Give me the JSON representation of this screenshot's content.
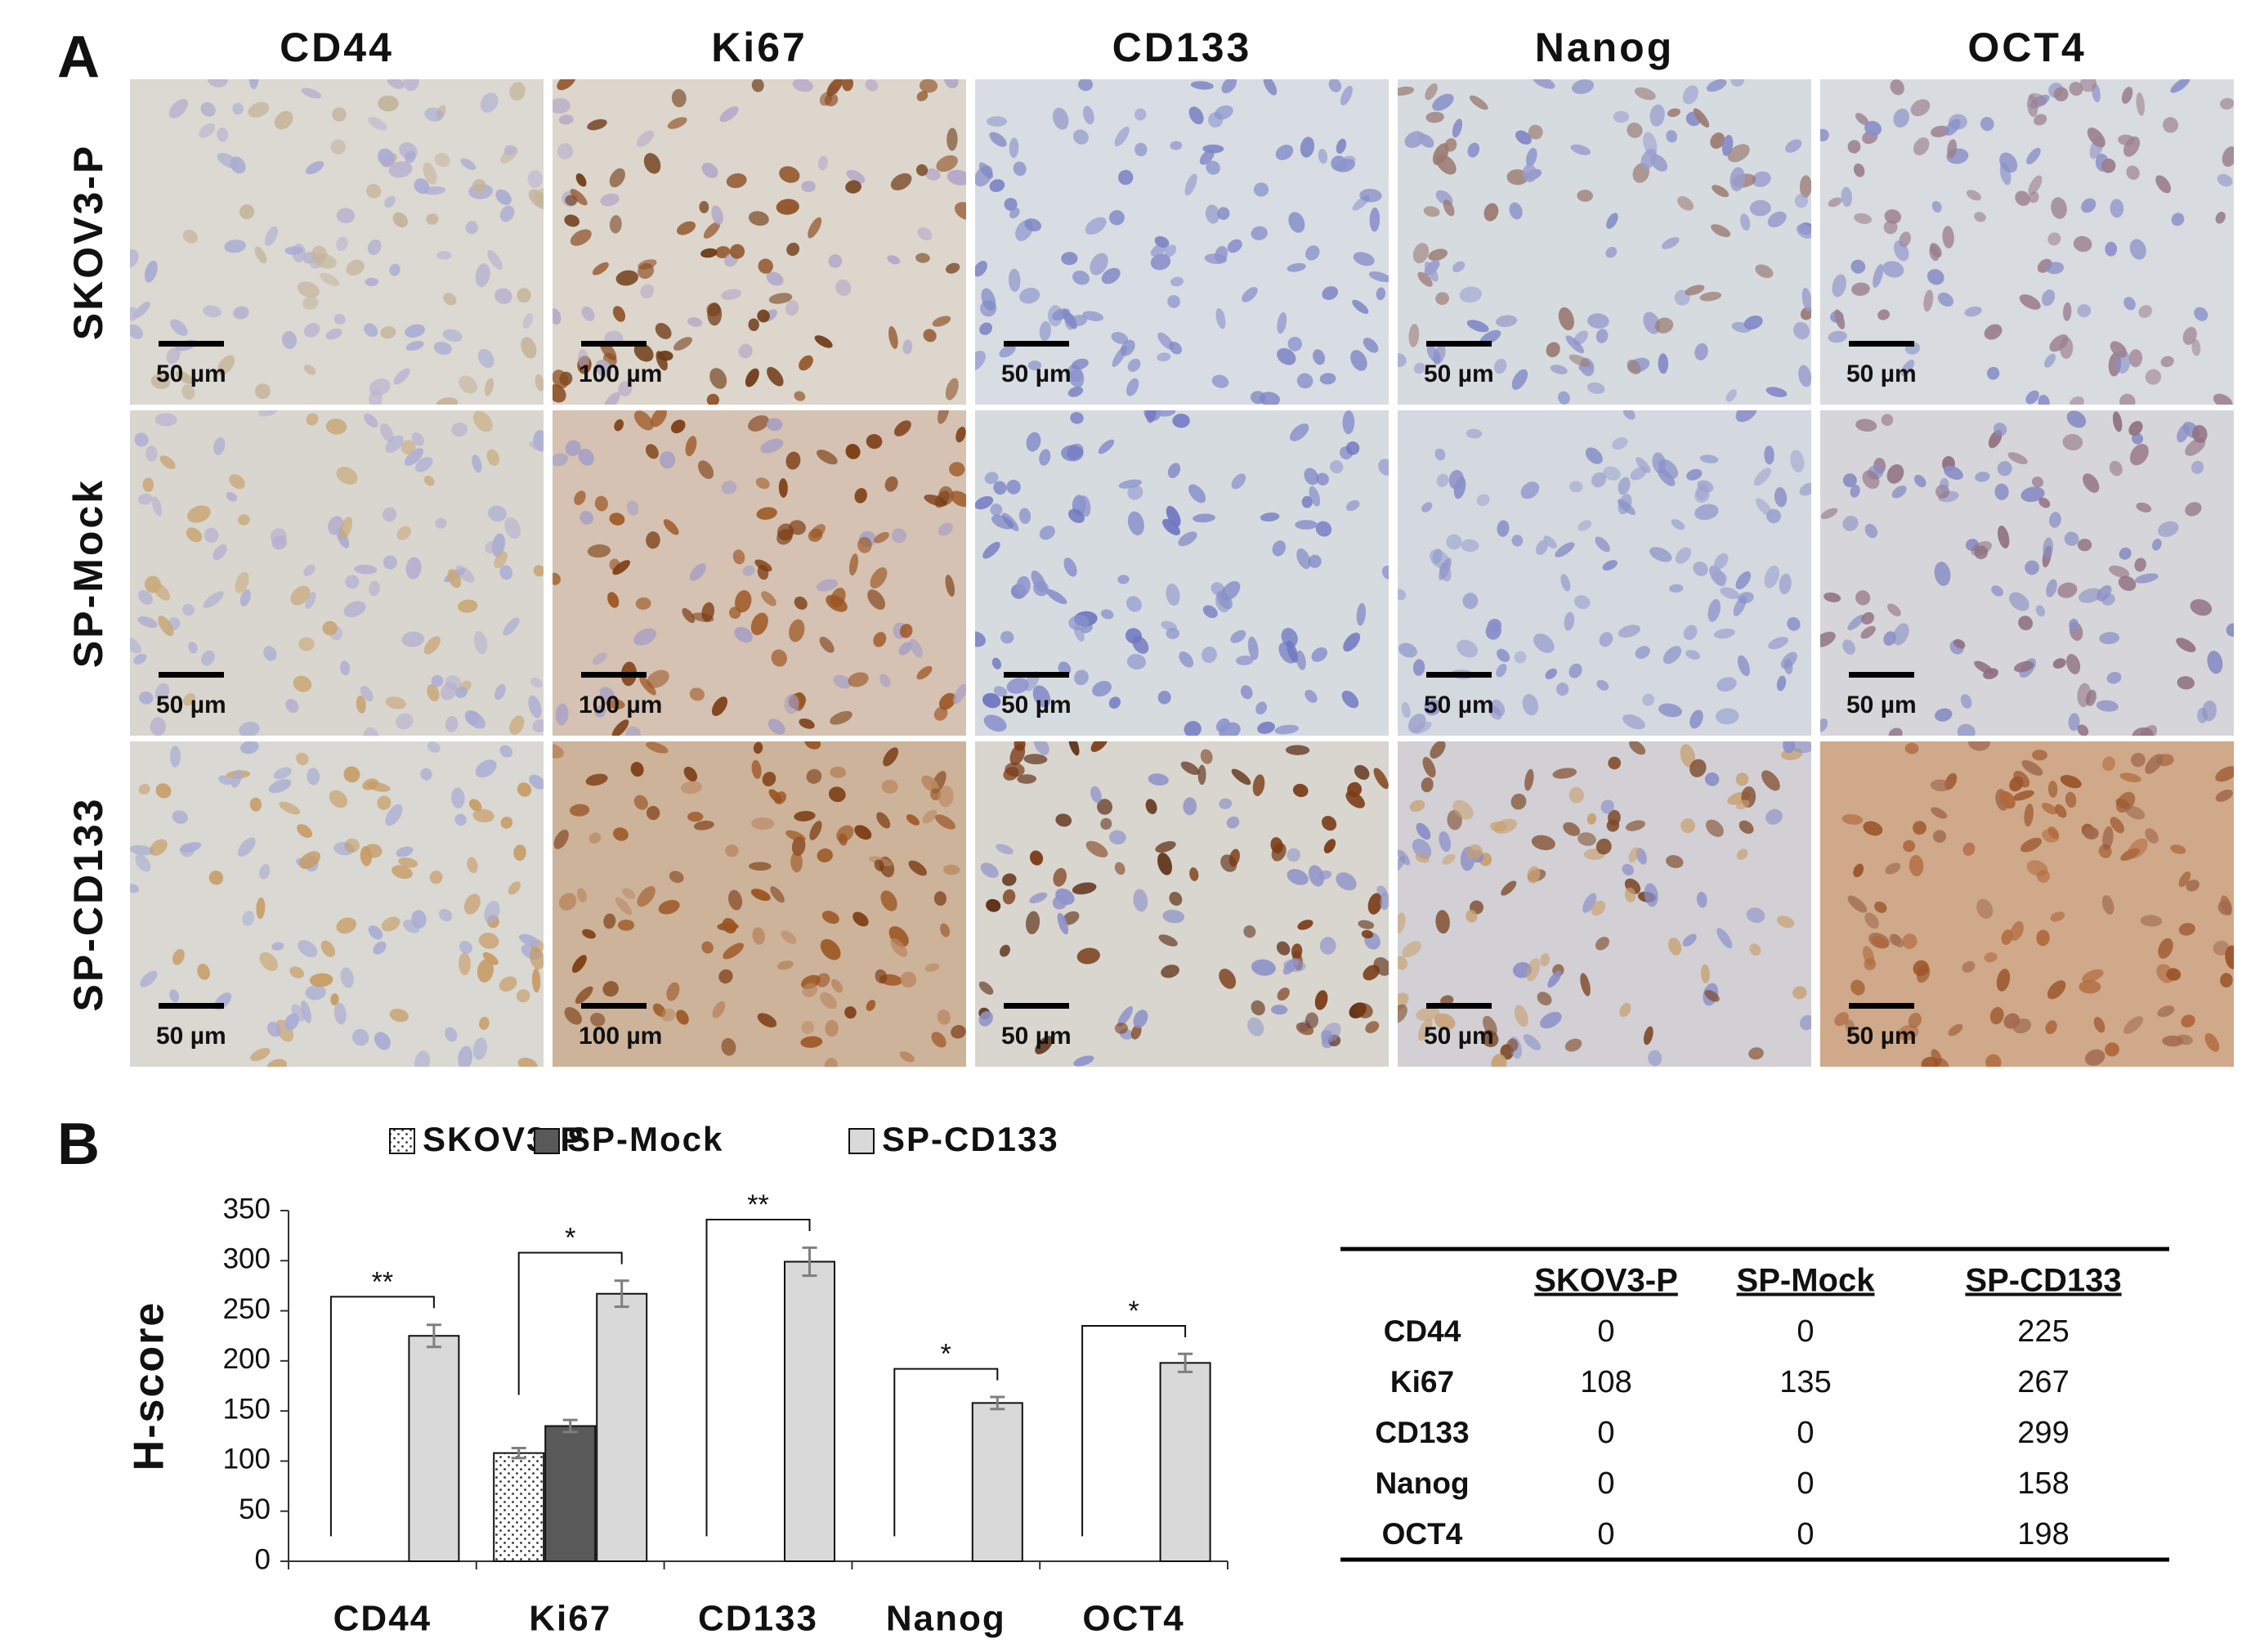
{
  "panel_a": {
    "label": "A",
    "columns": [
      "CD44",
      "Ki67",
      "CD133",
      "Nanog",
      "OCT4"
    ],
    "rows": [
      "SKOV3-P",
      "SP-Mock",
      "SP-CD133"
    ],
    "scale_bars": [
      [
        "50 µm",
        "100 µm",
        "50 µm",
        "50 µm",
        "50 µm"
      ],
      [
        "50 µm",
        "100 µm",
        "50 µm",
        "50 µm",
        "50 µm"
      ],
      [
        "50 µm",
        "100 µm",
        "50 µm",
        "50 µm",
        "50 µm"
      ]
    ]
  },
  "panel_b_label": "B",
  "chart_data": {
    "type": "bar",
    "ylabel": "H-score",
    "categories": [
      "CD44",
      "Ki67",
      "CD133",
      "Nanog",
      "OCT4"
    ],
    "series": [
      {
        "name": "SKOV3-P",
        "color": "#ffffff",
        "pattern": "dotted",
        "values": [
          0,
          108,
          0,
          0,
          0
        ],
        "errors": [
          null,
          5,
          null,
          null,
          null
        ]
      },
      {
        "name": "SP-Mock",
        "color": "#595959",
        "values": [
          0,
          135,
          0,
          0,
          0
        ],
        "errors": [
          null,
          6,
          null,
          null,
          null
        ]
      },
      {
        "name": "SP-CD133",
        "color": "#d9d9d9",
        "values": [
          225,
          267,
          299,
          158,
          198
        ],
        "errors": [
          11,
          13,
          14,
          6,
          9
        ]
      }
    ],
    "annotations": [
      "**",
      "*",
      "**",
      "*",
      "*"
    ],
    "ylim": [
      0,
      350
    ],
    "yticks": [
      0,
      50,
      100,
      150,
      200,
      250,
      300,
      350
    ],
    "grid": false,
    "legend": "top"
  },
  "table": {
    "header": [
      "SKOV3-P",
      "SP-Mock",
      "SP-CD133"
    ],
    "rows": [
      {
        "label": "CD44",
        "cells": [
          0,
          0,
          225
        ]
      },
      {
        "label": "Ki67",
        "cells": [
          108,
          135,
          267
        ]
      },
      {
        "label": "CD133",
        "cells": [
          0,
          0,
          299
        ]
      },
      {
        "label": "Nanog",
        "cells": [
          0,
          0,
          158
        ]
      },
      {
        "label": "OCT4",
        "cells": [
          0,
          0,
          198
        ]
      }
    ]
  }
}
